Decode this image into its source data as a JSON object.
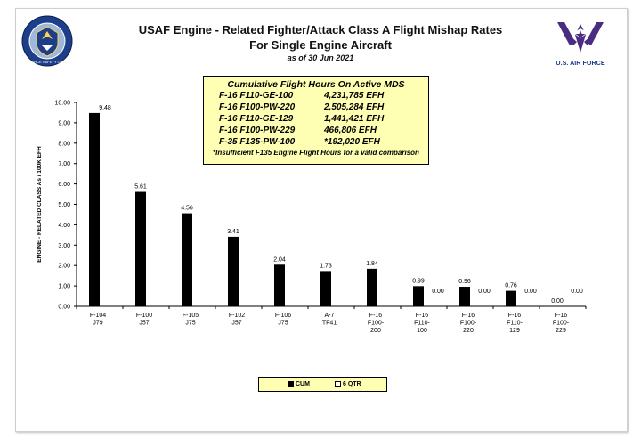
{
  "header": {
    "title_line1": "USAF Engine - Related Fighter/Attack Class A Flight Mishap Rates",
    "title_line2": "For Single Engine Aircraft",
    "date": "as of 30 Jun 2021",
    "right_logo_text": "U.S. AIR FORCE",
    "left_logo_text": "AIR FORCE SAFETY CENTER"
  },
  "infobox": {
    "heading": "Cumulative  Flight Hours On Active MDS",
    "rows": [
      {
        "mds": "F-16 F110-GE-100",
        "hours": "4,231,785 EFH"
      },
      {
        "mds": "F-16 F100-PW-220",
        "hours": "2,505,284 EFH"
      },
      {
        "mds": "F-16 F110-GE-129",
        "hours": "1,441,421 EFH"
      },
      {
        "mds": "F-16 F100-PW-229",
        "hours": "466,806 EFH"
      },
      {
        "mds": "F-35 F135-PW-100",
        "hours": "*192,020 EFH"
      }
    ],
    "note": "*Insufficient F135 Engine Flight Hours for a valid comparison"
  },
  "colors": {
    "cum": "#000000",
    "qtr": "#ffffff",
    "box_bg": "#ffffb3",
    "logo_purple": "#4b2c83",
    "logo_blue": "#1d3f8a"
  },
  "chart_data": {
    "type": "bar",
    "title": "",
    "xlabel": "",
    "ylabel": "ENGINE - RELATED CLASS As / 100K EFH",
    "ylim": [
      0,
      10
    ],
    "yticks": [
      "0.00",
      "1.00",
      "2.00",
      "3.00",
      "4.00",
      "5.00",
      "6.00",
      "7.00",
      "8.00",
      "9.00",
      "10.00"
    ],
    "grid": false,
    "legend_position": "bottom-center",
    "categories": [
      [
        "F-104",
        "J79"
      ],
      [
        "F-100",
        "J57"
      ],
      [
        "F-105",
        "J75"
      ],
      [
        "F-102",
        "J57"
      ],
      [
        "F-106",
        "J75"
      ],
      [
        "A-7",
        "TF41"
      ],
      [
        "F-16",
        "F100-",
        "200"
      ],
      [
        "F-16",
        "F110-",
        "100"
      ],
      [
        "F-16",
        "F100-",
        "220"
      ],
      [
        "F-16",
        "F110-",
        "129"
      ],
      [
        "F-16",
        "F100-",
        "229"
      ]
    ],
    "series": [
      {
        "name": "CUM",
        "values": [
          9.48,
          5.61,
          4.56,
          3.41,
          2.04,
          1.73,
          1.84,
          0.99,
          0.96,
          0.76,
          0.0
        ],
        "labels": [
          "9.48",
          "5.61",
          "4.56",
          "3.41",
          "2.04",
          "1.73",
          "1.84",
          "0.99",
          "0.96",
          "0.76",
          "0.00"
        ]
      },
      {
        "name": "6 QTR",
        "values": [
          null,
          null,
          null,
          null,
          null,
          null,
          null,
          0.0,
          0.0,
          0.0,
          0.0
        ],
        "labels": [
          "",
          "",
          "",
          "",
          "",
          "",
          "",
          "0.00",
          "0.00",
          "0.00",
          "0.00"
        ]
      }
    ]
  }
}
